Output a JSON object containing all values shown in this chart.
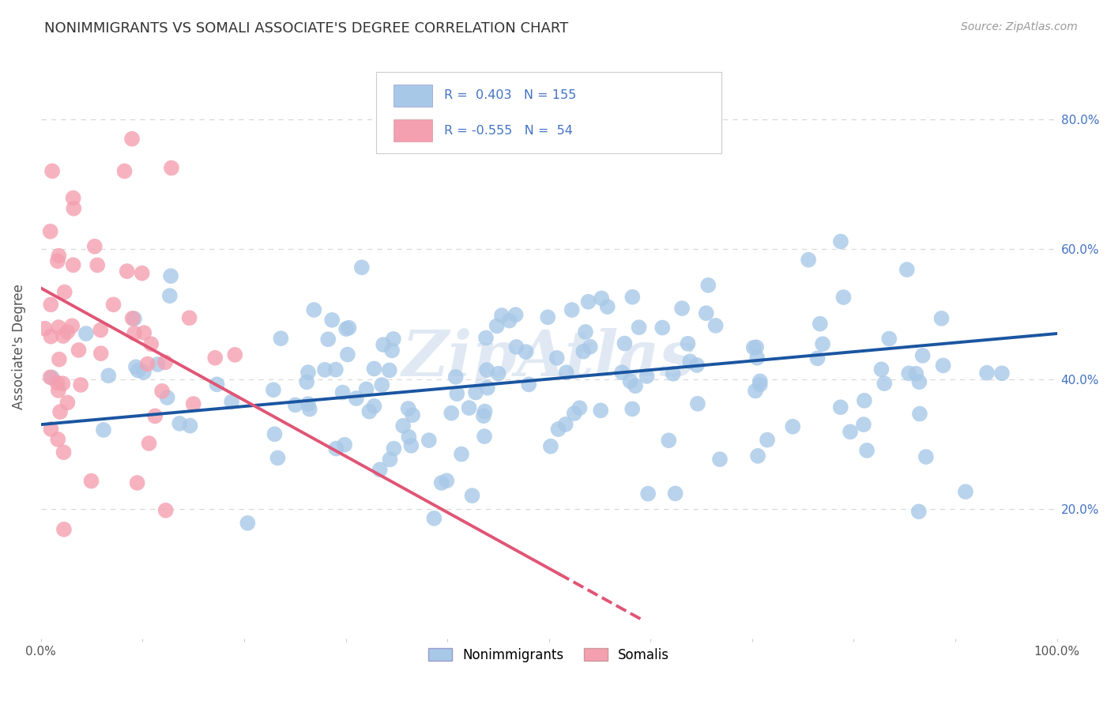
{
  "title": "NONIMMIGRANTS VS SOMALI ASSOCIATE'S DEGREE CORRELATION CHART",
  "source": "Source: ZipAtlas.com",
  "ylabel": "Associate's Degree",
  "xlim": [
    0,
    1.0
  ],
  "ylim": [
    0,
    0.9
  ],
  "x_ticks": [
    0.0,
    0.1,
    0.2,
    0.3,
    0.4,
    0.5,
    0.6,
    0.7,
    0.8,
    0.9,
    1.0
  ],
  "y_ticks": [
    0.2,
    0.4,
    0.6,
    0.8
  ],
  "y_tick_labels": [
    "20.0%",
    "40.0%",
    "60.0%",
    "80.0%"
  ],
  "blue_R": 0.403,
  "blue_N": 155,
  "pink_R": -0.555,
  "pink_N": 54,
  "blue_color": "#a8c8e8",
  "pink_color": "#f4a0b0",
  "blue_line_color": "#1a55a0",
  "pink_line_color": "#e05575",
  "legend_blue_label": "Nonimmigrants",
  "legend_pink_label": "Somalis",
  "watermark": "ZipAtlas",
  "background_color": "#ffffff",
  "grid_color": "#d8d8d8",
  "legend_text_color": "#4472c4",
  "blue_line_start_y": 0.33,
  "blue_line_end_y": 0.47,
  "pink_line_start_y": 0.54,
  "pink_line_start_x": 0.0,
  "pink_line_end_x": 0.51,
  "pink_line_end_y": 0.1
}
